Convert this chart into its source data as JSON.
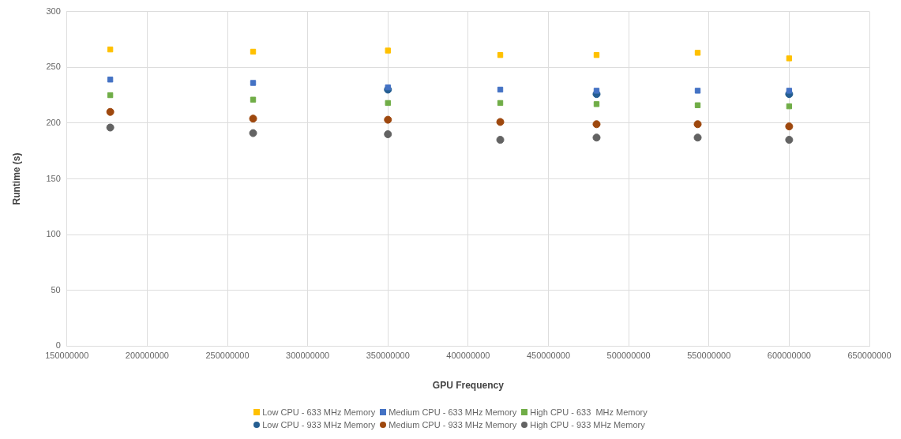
{
  "chart_data": {
    "type": "scatter",
    "xlabel": "GPU Frequency",
    "ylabel": "Runtime (s)",
    "x": [
      177000000,
      266000000,
      350000000,
      420000000,
      480000000,
      543000000,
      600000000
    ],
    "series": [
      {
        "name": "Low CPU - 633 MHz Memory",
        "color": "#ffc000",
        "marker": "square",
        "values": [
          266,
          264,
          265,
          261,
          261,
          263,
          258
        ]
      },
      {
        "name": "Medium CPU - 633 MHz Memory",
        "color": "#4472c4",
        "marker": "square",
        "values": [
          239,
          236,
          232,
          230,
          229,
          229,
          229
        ]
      },
      {
        "name": "High CPU - 633  MHz Memory",
        "color": "#70ad47",
        "marker": "square",
        "values": [
          225,
          221,
          218,
          218,
          217,
          216,
          215
        ]
      },
      {
        "name": "Low CPU - 933 MHz Memory",
        "color": "#255e91",
        "marker": "circle",
        "values": [
          null,
          null,
          230,
          null,
          226,
          null,
          226
        ]
      },
      {
        "name": "Medium CPU - 933 MHz Memory",
        "color": "#9e480e",
        "marker": "circle",
        "values": [
          210,
          204,
          203,
          201,
          199,
          199,
          197
        ]
      },
      {
        "name": "High CPU - 933 MHz Memory",
        "color": "#636363",
        "marker": "circle",
        "values": [
          196,
          191,
          190,
          185,
          187,
          187,
          185
        ]
      }
    ],
    "xlim": [
      150000000,
      650000000
    ],
    "xticks": [
      150000000,
      200000000,
      250000000,
      300000000,
      350000000,
      400000000,
      450000000,
      500000000,
      550000000,
      600000000,
      650000000
    ],
    "ylim": [
      0,
      300
    ],
    "yticks": [
      0,
      50,
      100,
      150,
      200,
      250,
      300
    ],
    "grid": true,
    "legend": "bottom"
  }
}
